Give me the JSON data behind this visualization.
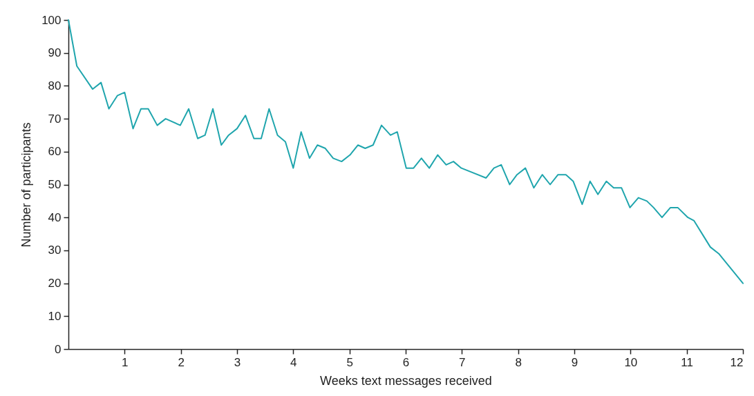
{
  "chart_data": {
    "type": "line",
    "xlabel": "Weeks text messages received",
    "ylabel": "Number of participants",
    "x": [
      0,
      0.15,
      0.43,
      0.58,
      0.72,
      0.87,
      1.0,
      1.15,
      1.29,
      1.42,
      1.58,
      1.73,
      1.99,
      2.14,
      2.3,
      2.43,
      2.57,
      2.72,
      2.85,
      3.0,
      3.15,
      3.3,
      3.43,
      3.57,
      3.72,
      3.86,
      4.0,
      4.14,
      4.29,
      4.43,
      4.57,
      4.71,
      4.86,
      5.01,
      5.15,
      5.28,
      5.42,
      5.57,
      5.73,
      5.85,
      6.01,
      6.14,
      6.28,
      6.42,
      6.57,
      6.72,
      6.85,
      6.99,
      7.43,
      7.57,
      7.7,
      7.85,
      7.98,
      8.13,
      8.28,
      8.43,
      8.57,
      8.71,
      8.85,
      8.98,
      9.14,
      9.28,
      9.42,
      9.57,
      9.7,
      9.84,
      9.99,
      10.14,
      10.29,
      10.41,
      10.56,
      10.71,
      10.84,
      11.02,
      11.13,
      11.42,
      11.57,
      12.0
    ],
    "series": [
      {
        "color": "#1fa5ad",
        "values": [
          100,
          86,
          79,
          81,
          73,
          77,
          78,
          67,
          73,
          73,
          68,
          70,
          68,
          73,
          64,
          65,
          73,
          62,
          65,
          67,
          71,
          64,
          64,
          73,
          65,
          63,
          55,
          66,
          58,
          62,
          61,
          58,
          57,
          59,
          62,
          61,
          62,
          68,
          65,
          66,
          55,
          55,
          58,
          55,
          59,
          56,
          57,
          55,
          52,
          55,
          56,
          50,
          53,
          55,
          49,
          53,
          50,
          53,
          53,
          51,
          44,
          51,
          47,
          51,
          49,
          49,
          43,
          46,
          45,
          43,
          40,
          43,
          43,
          40,
          39,
          31,
          29,
          20
        ]
      }
    ],
    "xlim": [
      0,
      12
    ],
    "xticks": [
      1,
      2,
      3,
      4,
      5,
      6,
      7,
      8,
      9,
      10,
      11,
      12
    ],
    "ylim": [
      0,
      100
    ],
    "yticks": [
      0,
      10,
      20,
      30,
      40,
      50,
      60,
      70,
      80,
      90,
      100
    ],
    "grid": false,
    "marker": "none",
    "line_style": "solid"
  }
}
